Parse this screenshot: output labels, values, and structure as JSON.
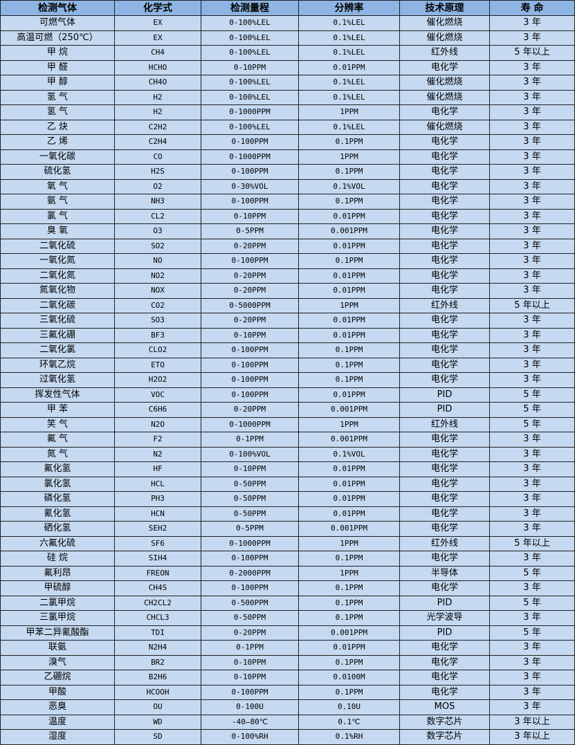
{
  "colors": {
    "header_bg": "#8db4e2",
    "row_bg": "#c5d9f1",
    "border": "#1f1f1f"
  },
  "headers": [
    "检测气体",
    "化学式",
    "检测量程",
    "分辨率",
    "技术原理",
    "寿 命"
  ],
  "rows": [
    [
      "可燃气体",
      "EX",
      "0-100%LEL",
      "0.1%LEL",
      "催化燃烧",
      "3 年"
    ],
    [
      "高温可燃（250℃）",
      "EX",
      "0-100%LEL",
      "0.1%LEL",
      "催化燃烧",
      "3 年"
    ],
    [
      "甲 烷",
      "CH4",
      "0-100%LEL",
      "0.1%LEL",
      "红外线",
      "5 年以上"
    ],
    [
      "甲 醛",
      "HCHO",
      "0-10PPM",
      "0.01PPM",
      "电化学",
      "3 年"
    ],
    [
      "甲 醇",
      "CH4O",
      "0-100%LEL",
      "0.1%LEL",
      "催化燃烧",
      "3 年"
    ],
    [
      "氢 气",
      "H2",
      "0-100%LEL",
      "0.1%LEL",
      "催化燃烧",
      "3 年"
    ],
    [
      "氢 气",
      "H2",
      "0-1000PPM",
      "1PPM",
      "电化学",
      "3 年"
    ],
    [
      "乙 炔",
      "C2H2",
      "0-100%LEL",
      "0.1%LEL",
      "催化燃烧",
      "3 年"
    ],
    [
      "乙 烯",
      "C2H4",
      "0-100PPM",
      "0.1PPM",
      "电化学",
      "3 年"
    ],
    [
      "一氧化碳",
      "CO",
      "0-1000PPM",
      "1PPM",
      "电化学",
      "3 年"
    ],
    [
      "硫化氢",
      "H2S",
      "0-100PPM",
      "0.1PPM",
      "电化学",
      "3 年"
    ],
    [
      "氧 气",
      "O2",
      "0-30%VOL",
      "0.1%VOL",
      "电化学",
      "3 年"
    ],
    [
      "氨 气",
      "NH3",
      "0-100PPM",
      "0.1PPM",
      "电化学",
      "3 年"
    ],
    [
      "氯 气",
      "CL2",
      "0-10PPM",
      "0.01PPM",
      "电化学",
      "3 年"
    ],
    [
      "臭 氧",
      "O3",
      "0-5PPM",
      "0.001PPM",
      "电化学",
      "3 年"
    ],
    [
      "二氧化硫",
      "SO2",
      "0-20PPM",
      "0.01PPM",
      "电化学",
      "3 年"
    ],
    [
      "一氧化氮",
      "NO",
      "0-100PPM",
      "0.1PPM",
      "电化学",
      "3 年"
    ],
    [
      "二氧化氮",
      "NO2",
      "0-20PPM",
      "0.01PPM",
      "电化学",
      "3 年"
    ],
    [
      "氮氧化物",
      "NOX",
      "0-20PPM",
      "0.01PPM",
      "电化学",
      "3 年"
    ],
    [
      "二氧化碳",
      "CO2",
      "0-5000PPM",
      "1PPM",
      "红外线",
      "5 年以上"
    ],
    [
      "三氧化硫",
      "SO3",
      "0-20PPM",
      "0.01PPM",
      "电化学",
      "3 年"
    ],
    [
      "三氟化硼",
      "BF3",
      "0-10PPM",
      "0.01PPM",
      "电化学",
      "3 年"
    ],
    [
      "二氧化氯",
      "CLO2",
      "0-100PPM",
      "0.1PPM",
      "电化学",
      "3 年"
    ],
    [
      "环氧乙烷",
      "ETO",
      "0-100PPM",
      "0.1PPM",
      "电化学",
      "3 年"
    ],
    [
      "过氧化氢",
      "H2O2",
      "0-100PPM",
      "0.1PPM",
      "电化学",
      "3 年"
    ],
    [
      "挥发性气体",
      "VOC",
      "0-100PPM",
      "0.01PPM",
      "PID",
      "5 年"
    ],
    [
      "甲 苯",
      "C6H6",
      "0-20PPM",
      "0.001PPM",
      "PID",
      "5 年"
    ],
    [
      "笑 气",
      "N2O",
      "0-1000PPM",
      "1PPM",
      "红外线",
      "5 年"
    ],
    [
      "氟 气",
      "F2",
      "0-1PPM",
      "0.001PPM",
      "电化学",
      "3 年"
    ],
    [
      "氮 气",
      "N2",
      "0-100%VOL",
      "0.1%VOL",
      "电化学",
      "3 年"
    ],
    [
      "氟化氢",
      "HF",
      "0-10PPM",
      "0.01PPM",
      "电化学",
      "3 年"
    ],
    [
      "氯化氢",
      "HCL",
      "0-50PPM",
      "0.01PPM",
      "电化学",
      "3 年"
    ],
    [
      "磷化氢",
      "PH3",
      "0-50PPM",
      "0.01PPM",
      "电化学",
      "3 年"
    ],
    [
      "氰化氢",
      "HCN",
      "0-50PPM",
      "0.01PPM",
      "电化学",
      "3 年"
    ],
    [
      "硒化氢",
      "SEH2",
      "0-5PPM",
      "0.001PPM",
      "电化学",
      "3 年"
    ],
    [
      "六氟化硫",
      "SF6",
      "0-1000PPM",
      "1PPM",
      "红外线",
      "5 年以上"
    ],
    [
      "硅 烷",
      "SIH4",
      "0-100PPM",
      "0.1PPM",
      "电化学",
      "3 年"
    ],
    [
      "氟利昂",
      "FREON",
      "0-2000PPM",
      "1PPM",
      "半导体",
      "5 年"
    ],
    [
      "甲硫醇",
      "CH4S",
      "0-100PPM",
      "0.1PPM",
      "电化学",
      "3 年"
    ],
    [
      "二氯甲烷",
      "CH2CL2",
      "0-500PPM",
      "0.1PPM",
      "PID",
      "5 年"
    ],
    [
      "三氯甲烷",
      "CHCL3",
      "0-50PPM",
      "0.1PPM",
      "光学波导",
      "3 年"
    ],
    [
      "甲苯二异氰酸酯",
      "TDI",
      "0-20PPM",
      "0.001PPM",
      "PID",
      "5 年"
    ],
    [
      "联氨",
      "N2H4",
      "0-1PPM",
      "0.01PPM",
      "电化学",
      "3 年"
    ],
    [
      "溴气",
      "BR2",
      "0-10PPM",
      "0.1PPM",
      "电化学",
      "3 年"
    ],
    [
      "乙硼烷",
      "B2H6",
      "0-10PPM",
      "0.0100M",
      "电化学",
      "3 年"
    ],
    [
      "甲酸",
      "HCOOH",
      "0-100PPM",
      "0.1PPM",
      "电化学",
      "3 年"
    ],
    [
      "恶臭",
      "OU",
      "0-100U",
      "0.10U",
      "MOS",
      "3 年"
    ],
    [
      "温度",
      "WD",
      "-40—80℃",
      "0.1℃",
      "数字芯片",
      "3 年以上"
    ],
    [
      "湿度",
      "SD",
      "0-100%RH",
      "0.1%RH",
      "数字芯片",
      "3 年以上"
    ]
  ]
}
